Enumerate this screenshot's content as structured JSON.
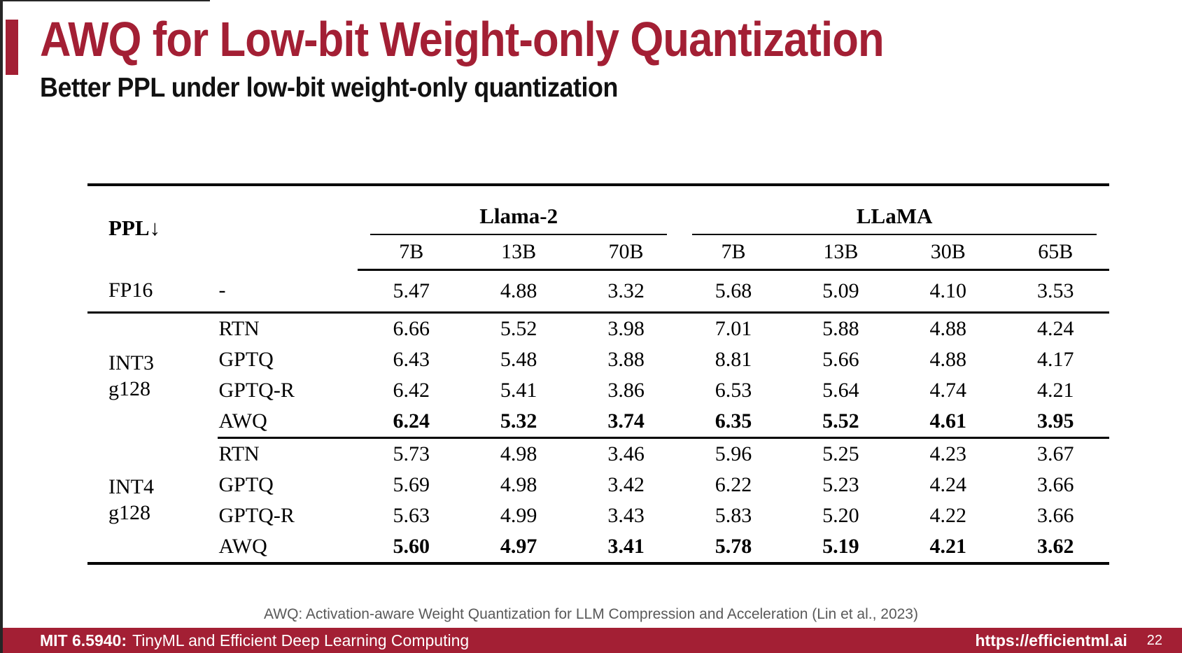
{
  "slide": {
    "title": "AWQ for Low-bit Weight-only Quantization",
    "subtitle": "Better PPL under low-bit weight-only quantization",
    "caption": "AWQ: Activation-aware Weight Quantization for LLM Compression and Acceleration (Lin et al., 2023)",
    "accent_color": "#A31F34",
    "footer": {
      "course": "MIT 6.5940:",
      "course_rest": "TinyML and Efficient Deep Learning Computing",
      "url": "https://efficientml.ai",
      "page": "22"
    }
  },
  "chart_data": {
    "type": "table",
    "title": "PPL under low-bit weight-only quantization (lower is better)",
    "metric_label": "PPL",
    "metric_arrow": "↓",
    "groups": [
      {
        "label": "Llama-2",
        "cols": [
          "7B",
          "13B",
          "70B"
        ]
      },
      {
        "label": "LLaMA",
        "cols": [
          "7B",
          "13B",
          "30B",
          "65B"
        ]
      }
    ],
    "col_sizes": [
      "7B",
      "13B",
      "70B",
      "7B",
      "13B",
      "30B",
      "65B"
    ],
    "int3_label": [
      "INT3",
      "g128"
    ],
    "int4_label": [
      "INT4",
      "g128"
    ],
    "rows": [
      {
        "c0": "FP16",
        "c1": "-",
        "bold": false,
        "v": [
          "5.47",
          "4.88",
          "3.32",
          "5.68",
          "5.09",
          "4.10",
          "3.53"
        ]
      },
      {
        "c1": "RTN",
        "bold": false,
        "v": [
          "6.66",
          "5.52",
          "3.98",
          "7.01",
          "5.88",
          "4.88",
          "4.24"
        ]
      },
      {
        "c1": "GPTQ",
        "bold": false,
        "v": [
          "6.43",
          "5.48",
          "3.88",
          "8.81",
          "5.66",
          "4.88",
          "4.17"
        ]
      },
      {
        "c1": "GPTQ-R",
        "bold": false,
        "v": [
          "6.42",
          "5.41",
          "3.86",
          "6.53",
          "5.64",
          "4.74",
          "4.21"
        ]
      },
      {
        "c1": "AWQ",
        "bold": true,
        "v": [
          "6.24",
          "5.32",
          "3.74",
          "6.35",
          "5.52",
          "4.61",
          "3.95"
        ]
      },
      {
        "c1": "RTN",
        "bold": false,
        "v": [
          "5.73",
          "4.98",
          "3.46",
          "5.96",
          "5.25",
          "4.23",
          "3.67"
        ]
      },
      {
        "c1": "GPTQ",
        "bold": false,
        "v": [
          "5.69",
          "4.98",
          "3.42",
          "6.22",
          "5.23",
          "4.24",
          "3.66"
        ]
      },
      {
        "c1": "GPTQ-R",
        "bold": false,
        "v": [
          "5.63",
          "4.99",
          "3.43",
          "5.83",
          "5.20",
          "4.22",
          "3.66"
        ]
      },
      {
        "c1": "AWQ",
        "bold": true,
        "v": [
          "5.60",
          "4.97",
          "3.41",
          "5.78",
          "5.19",
          "4.21",
          "3.62"
        ]
      }
    ]
  }
}
